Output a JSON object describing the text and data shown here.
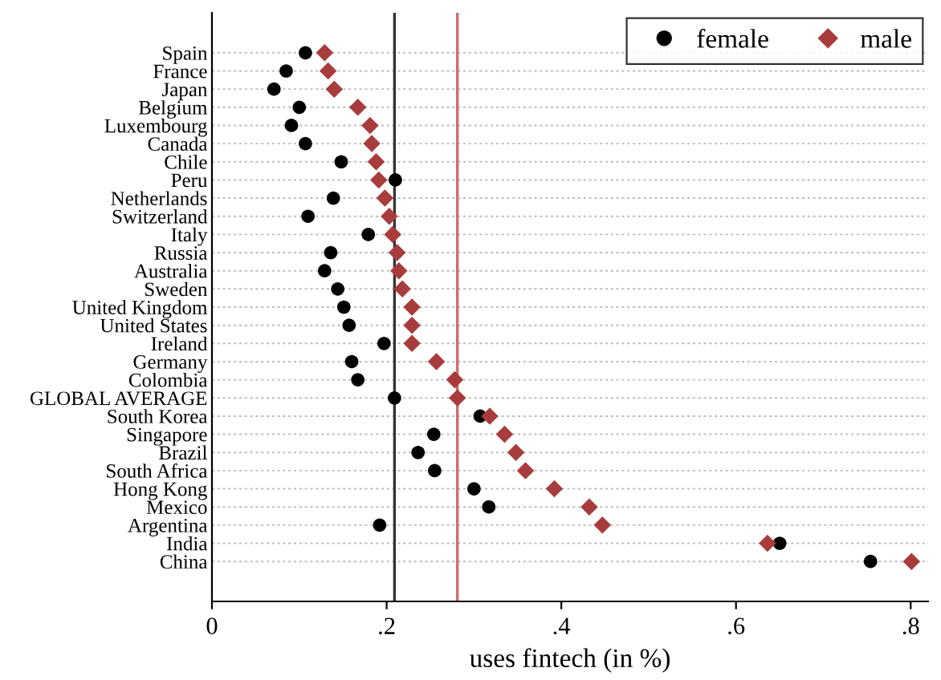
{
  "chart_data": {
    "type": "scatter",
    "orientation": "horizontal",
    "xlabel": "uses fintech (in %)",
    "categories": [
      "Spain",
      "France",
      "Japan",
      "Belgium",
      "Luxembourg",
      "Canada",
      "Chile",
      "Peru",
      "Netherlands",
      "Switzerland",
      "Italy",
      "Russia",
      "Australia",
      "Sweden",
      "United Kingdom",
      "United States",
      "Ireland",
      "Germany",
      "Colombia",
      "GLOBAL AVERAGE",
      "South Korea",
      "Singapore",
      "Brazil",
      "South Africa",
      "Hong Kong",
      "Mexico",
      "Argentina",
      "India",
      "China"
    ],
    "series": [
      {
        "name": "female",
        "color": "#000000",
        "marker": "circle",
        "values": [
          0.107,
          0.085,
          0.071,
          0.1,
          0.091,
          0.107,
          0.148,
          0.21,
          0.139,
          0.11,
          0.179,
          0.136,
          0.129,
          0.144,
          0.151,
          0.157,
          0.197,
          0.16,
          0.167,
          0.209,
          0.307,
          0.254,
          0.236,
          0.255,
          0.3,
          0.317,
          0.192,
          0.65,
          0.754
        ]
      },
      {
        "name": "male",
        "color": "#a83c3c",
        "marker": "diamond",
        "values": [
          0.129,
          0.133,
          0.14,
          0.167,
          0.181,
          0.183,
          0.188,
          0.191,
          0.198,
          0.203,
          0.207,
          0.212,
          0.214,
          0.218,
          0.229,
          0.229,
          0.229,
          0.257,
          0.278,
          0.281,
          0.318,
          0.335,
          0.348,
          0.359,
          0.392,
          0.432,
          0.447,
          0.636,
          0.801
        ]
      }
    ],
    "xlim": [
      0,
      0.82
    ],
    "xticks": [
      0,
      {
        "value": 0.2,
        "label": ".2"
      },
      {
        "value": 0.4,
        "label": ".4"
      },
      {
        "value": 0.6,
        "label": ".6"
      },
      {
        "value": 0.8,
        "label": ".8"
      }
    ],
    "ref_lines": [
      {
        "axis": "x",
        "value": 0.209,
        "color": "#333333"
      },
      {
        "axis": "x",
        "value": 0.281,
        "color": "#d46a6a"
      }
    ],
    "grid": "y",
    "legend": "top right"
  }
}
